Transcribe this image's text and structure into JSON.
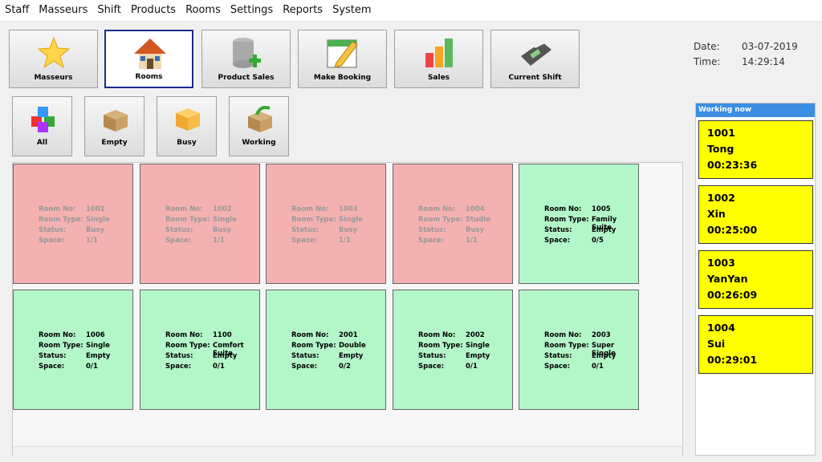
{
  "menu": [
    "Staff",
    "Masseurs",
    "Shift",
    "Products",
    "Rooms",
    "Settings",
    "Reports",
    "System"
  ],
  "toolbar": [
    "Masseurs",
    "Rooms",
    "Product Sales",
    "Make Booking",
    "Sales",
    "Current Shift"
  ],
  "datetime": {
    "date_label": "Date:",
    "date": "03-07-2019",
    "time_label": "Time:",
    "time": "14:29:14"
  },
  "filters": [
    "All",
    "Empty",
    "Busy",
    "Working"
  ],
  "field_labels": [
    "Room No:",
    "Room Type:",
    "Status:",
    "Space:"
  ],
  "rooms": [
    {
      "no": "1001",
      "type": "Single",
      "status": "Busy",
      "space": "1/1",
      "color": "#f5b1b1",
      "text_color": "#999999"
    },
    {
      "no": "1002",
      "type": "Single",
      "status": "Busy",
      "space": "1/1",
      "color": "#f5b1b1",
      "text_color": "#999999"
    },
    {
      "no": "1003",
      "type": "Single",
      "status": "Busy",
      "space": "1/1",
      "color": "#f5b1b1",
      "text_color": "#999999"
    },
    {
      "no": "1004",
      "type": "Studio",
      "status": "Busy",
      "space": "1/1",
      "color": "#f5b1b1",
      "text_color": "#999999"
    },
    {
      "no": "1005",
      "type": "Family Suite",
      "status": "Empty",
      "space": "0/5",
      "color": "#b3f7c9",
      "text_color": "#000000"
    },
    {
      "no": "1006",
      "type": "Single",
      "status": "Empty",
      "space": "0/1",
      "color": "#b3f7c9",
      "text_color": "#000000"
    },
    {
      "no": "1100",
      "type": "Comfort Suite",
      "status": "Empty",
      "space": "0/1",
      "color": "#b3f7c9",
      "text_color": "#000000"
    },
    {
      "no": "2001",
      "type": "Double",
      "status": "Empty",
      "space": "0/2",
      "color": "#b3f7c9",
      "text_color": "#000000"
    },
    {
      "no": "2002",
      "type": "Single",
      "status": "Empty",
      "space": "0/1",
      "color": "#b3f7c9",
      "text_color": "#000000"
    },
    {
      "no": "2003",
      "type": "Super Single",
      "status": "Empty",
      "space": "0/1",
      "color": "#b3f7c9",
      "text_color": "#000000"
    }
  ],
  "working_now": {
    "title": "Working now",
    "entries": [
      {
        "room": "1001",
        "name": "Tong",
        "time": "00:23:36"
      },
      {
        "room": "1002",
        "name": "Xin",
        "time": "00:25:00"
      },
      {
        "room": "1003",
        "name": "YanYan",
        "time": "00:26:09"
      },
      {
        "room": "1004",
        "name": "Sui",
        "time": "00:29:01"
      }
    ]
  }
}
